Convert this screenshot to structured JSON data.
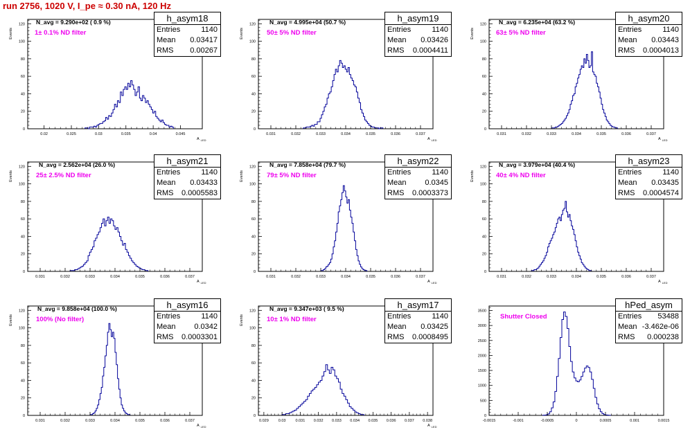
{
  "page_title": "run 2756,  1020 V, I_pe ≈ 0.30 nA, 120 Hz",
  "chart_data": [
    {
      "type": "histogram",
      "name": "h_asym18",
      "stats": {
        "entries": "1140",
        "mean": "0.03417",
        "rms": "0.00267"
      },
      "annotation_navg": "N_avg = 9.290e+02 ( 0.9 %)",
      "annotation_filter": "1± 0.1% ND filter",
      "xlabel": "A_LED",
      "ylabel": "Events",
      "xlim": [
        0.017,
        0.049
      ],
      "ylim": [
        0,
        125
      ],
      "xticks": [
        "0.02",
        "0.025",
        "0.03",
        "0.035",
        "0.04",
        "0.045"
      ],
      "yticks": [
        "0",
        "20",
        "40",
        "60",
        "80",
        "100",
        "120"
      ],
      "bin_width": 0.00027,
      "counts": [
        1,
        1,
        0,
        2,
        2,
        2,
        3,
        2,
        4,
        5,
        6,
        6,
        8,
        9,
        13,
        11,
        15,
        14,
        18,
        22,
        28,
        25,
        32,
        30,
        42,
        38,
        45,
        48,
        45,
        52,
        48,
        55,
        50,
        45,
        38,
        42,
        48,
        35,
        32,
        38,
        35,
        30,
        32,
        28,
        25,
        22,
        18,
        20,
        14,
        12,
        10,
        8,
        10,
        7,
        5,
        4,
        4,
        2,
        3,
        2
      ]
    },
    {
      "type": "histogram",
      "name": "h_asym19",
      "stats": {
        "entries": "1140",
        "mean": "0.03426",
        "rms": "0.0004411"
      },
      "annotation_navg": "N_avg = 4.995e+04 (50.7 %)",
      "annotation_filter": "50± 5% ND filter",
      "xlabel": "A_LED",
      "ylabel": "Events",
      "xlim": [
        0.0305,
        0.0375
      ],
      "ylim": [
        0,
        125
      ],
      "xticks": [
        "0.031",
        "0.032",
        "0.033",
        "0.034",
        "0.035",
        "0.036",
        "0.037"
      ],
      "yticks": [
        "0",
        "20",
        "40",
        "60",
        "80",
        "100",
        "120"
      ],
      "bin_width": 5.6e-05,
      "counts": [
        1,
        1,
        2,
        2,
        2,
        3,
        4,
        3,
        5,
        5,
        8,
        8,
        12,
        16,
        20,
        25,
        28,
        35,
        40,
        42,
        48,
        55,
        62,
        68,
        65,
        72,
        78,
        75,
        70,
        72,
        68,
        65,
        70,
        62,
        58,
        55,
        50,
        48,
        42,
        35,
        30,
        22,
        18,
        14,
        10,
        8,
        6,
        4,
        3,
        2,
        2,
        1,
        1,
        1,
        0,
        1,
        1
      ]
    },
    {
      "type": "histogram",
      "name": "h_asym20",
      "stats": {
        "entries": "1140",
        "mean": "0.03443",
        "rms": "0.0004013"
      },
      "annotation_navg": "N_avg = 6.235e+04 (63.2 %)",
      "annotation_filter": "63± 5% ND filter",
      "xlabel": "A_LED",
      "ylabel": "Events",
      "xlim": [
        0.0305,
        0.0375
      ],
      "ylim": [
        0,
        125
      ],
      "xticks": [
        "0.031",
        "0.032",
        "0.033",
        "0.034",
        "0.035",
        "0.036",
        "0.037"
      ],
      "yticks": [
        "0",
        "20",
        "40",
        "60",
        "80",
        "100",
        "120"
      ],
      "bin_width": 5e-05,
      "counts": [
        1,
        1,
        1,
        2,
        2,
        3,
        4,
        5,
        6,
        8,
        10,
        12,
        15,
        18,
        22,
        28,
        32,
        38,
        40,
        48,
        52,
        58,
        62,
        68,
        72,
        70,
        80,
        75,
        85,
        78,
        70,
        72,
        88,
        65,
        62,
        60,
        52,
        48,
        42,
        35,
        28,
        22,
        18,
        14,
        10,
        8,
        6,
        4,
        3,
        2,
        2,
        1,
        1
      ]
    },
    {
      "type": "histogram",
      "name": "h_asym21",
      "stats": {
        "entries": "1140",
        "mean": "0.03433",
        "rms": "0.0005583"
      },
      "annotation_navg": "N_avg = 2.562e+04 (26.0 %)",
      "annotation_filter": "25± 2.5% ND filter",
      "xlabel": "A_LED",
      "ylabel": "Events",
      "xlim": [
        0.0305,
        0.0375
      ],
      "ylim": [
        0,
        125
      ],
      "xticks": [
        "0.031",
        "0.032",
        "0.033",
        "0.034",
        "0.035",
        "0.036",
        "0.037"
      ],
      "yticks": [
        "0",
        "20",
        "40",
        "60",
        "80",
        "100",
        "120"
      ],
      "bin_width": 6e-05,
      "counts": [
        1,
        1,
        1,
        2,
        2,
        3,
        4,
        5,
        6,
        8,
        10,
        12,
        18,
        22,
        25,
        28,
        35,
        38,
        42,
        45,
        50,
        55,
        60,
        52,
        58,
        62,
        55,
        60,
        58,
        52,
        48,
        50,
        45,
        40,
        35,
        30,
        32,
        25,
        22,
        18,
        15,
        12,
        10,
        8,
        6,
        5,
        4,
        3,
        2,
        2,
        1,
        1
      ]
    },
    {
      "type": "histogram",
      "name": "h_asym22",
      "stats": {
        "entries": "1140",
        "mean": "0.0345",
        "rms": "0.0003373"
      },
      "annotation_navg": "N_avg = 7.858e+04 (79.7 %)",
      "annotation_filter": "79± 5% ND filter",
      "xlabel": "A_LED",
      "ylabel": "Events",
      "xlim": [
        0.0305,
        0.0375
      ],
      "ylim": [
        0,
        125
      ],
      "xticks": [
        "0.031",
        "0.032",
        "0.033",
        "0.034",
        "0.035",
        "0.036",
        "0.037"
      ],
      "yticks": [
        "0",
        "20",
        "40",
        "60",
        "80",
        "100",
        "120"
      ],
      "bin_width": 5e-05,
      "counts": [
        1,
        1,
        2,
        3,
        5,
        6,
        8,
        10,
        14,
        20,
        28,
        35,
        45,
        55,
        68,
        75,
        82,
        90,
        98,
        92,
        85,
        78,
        82,
        70,
        62,
        55,
        45,
        35,
        25,
        18,
        12,
        8,
        5,
        3,
        2,
        1,
        1
      ]
    },
    {
      "type": "histogram",
      "name": "h_asym23",
      "stats": {
        "entries": "1140",
        "mean": "0.03435",
        "rms": "0.0004574"
      },
      "annotation_navg": "N_avg = 3.979e+04 (40.4 %)",
      "annotation_filter": "40± 4% ND filter",
      "xlabel": "A_LED",
      "ylabel": "Events",
      "xlim": [
        0.0305,
        0.0375
      ],
      "ylim": [
        0,
        125
      ],
      "xticks": [
        "0.031",
        "0.032",
        "0.033",
        "0.034",
        "0.035",
        "0.036",
        "0.037"
      ],
      "yticks": [
        "0",
        "20",
        "40",
        "60",
        "80",
        "100",
        "120"
      ],
      "bin_width": 5e-05,
      "counts": [
        1,
        1,
        2,
        2,
        3,
        4,
        6,
        8,
        10,
        12,
        15,
        18,
        22,
        28,
        32,
        35,
        38,
        42,
        45,
        50,
        55,
        60,
        62,
        58,
        65,
        70,
        72,
        80,
        68,
        62,
        65,
        58,
        52,
        48,
        42,
        35,
        28,
        22,
        18,
        14,
        10,
        8,
        6,
        4,
        3,
        2,
        1,
        1
      ]
    },
    {
      "type": "histogram",
      "name": "h_asym16",
      "stats": {
        "entries": "1140",
        "mean": "0.0342",
        "rms": "0.0003301"
      },
      "annotation_navg": "N_avg = 9.858e+04 (100.0 %)",
      "annotation_filter": "100% (No filter)",
      "xlabel": "A_LED",
      "ylabel": "Events",
      "xlim": [
        0.0305,
        0.0375
      ],
      "ylim": [
        0,
        125
      ],
      "xticks": [
        "0.031",
        "0.032",
        "0.033",
        "0.034",
        "0.035",
        "0.036",
        "0.037"
      ],
      "yticks": [
        "0",
        "20",
        "40",
        "60",
        "80",
        "100",
        "120"
      ],
      "bin_width": 5e-05,
      "counts": [
        1,
        1,
        2,
        3,
        5,
        8,
        12,
        18,
        25,
        32,
        45,
        55,
        68,
        80,
        95,
        105,
        98,
        90,
        95,
        88,
        72,
        58,
        42,
        30,
        20,
        12,
        8,
        5,
        3,
        2,
        1,
        1
      ]
    },
    {
      "type": "histogram",
      "name": "h_asym17",
      "stats": {
        "entries": "1140",
        "mean": "0.03425",
        "rms": "0.0008495"
      },
      "annotation_navg": "N_avg = 9.347e+03 ( 9.5 %)",
      "annotation_filter": "10± 1% ND filter",
      "xlabel": "A_LED",
      "ylabel": "Events",
      "xlim": [
        0.0287,
        0.0383
      ],
      "ylim": [
        0,
        125
      ],
      "xticks": [
        "0.029",
        "0.03",
        "0.031",
        "0.032",
        "0.033",
        "0.034",
        "0.035",
        "0.036",
        "0.037",
        "0.038"
      ],
      "yticks": [
        "0",
        "20",
        "40",
        "60",
        "80",
        "100",
        "120"
      ],
      "bin_width": 0.0001,
      "counts": [
        1,
        1,
        2,
        2,
        3,
        4,
        5,
        6,
        8,
        10,
        12,
        14,
        16,
        18,
        22,
        25,
        28,
        30,
        32,
        35,
        38,
        40,
        45,
        50,
        58,
        52,
        48,
        55,
        52,
        45,
        42,
        38,
        30,
        25,
        22,
        18,
        14,
        10,
        8,
        6,
        4,
        3,
        2,
        1,
        1
      ]
    },
    {
      "type": "histogram",
      "name": "hPed_asym",
      "stats": {
        "entries": "53488",
        "mean": "-3.462e-06",
        "rms": "0.000238"
      },
      "annotation_navg": "",
      "annotation_filter": "Shutter Closed",
      "xlabel": "",
      "ylabel": "",
      "xlim": [
        -0.0015,
        0.0015
      ],
      "ylim": [
        0,
        3650
      ],
      "xticks": [
        "-0.0015",
        "-0.001",
        "-0.0005",
        "0",
        "0.0005",
        "0.001",
        "0.0015"
      ],
      "yticks": [
        "0",
        "500",
        "1000",
        "1500",
        "2000",
        "2500",
        "3000",
        "3500"
      ],
      "bin_width": 3e-05,
      "counts": [
        5,
        10,
        20,
        50,
        120,
        250,
        450,
        800,
        1300,
        1900,
        2600,
        3200,
        3450,
        3300,
        2900,
        2300,
        1800,
        1450,
        1250,
        1150,
        1120,
        1180,
        1300,
        1450,
        1580,
        1650,
        1600,
        1450,
        1200,
        900,
        600,
        380,
        220,
        120,
        60,
        30,
        15,
        8,
        3
      ]
    }
  ]
}
